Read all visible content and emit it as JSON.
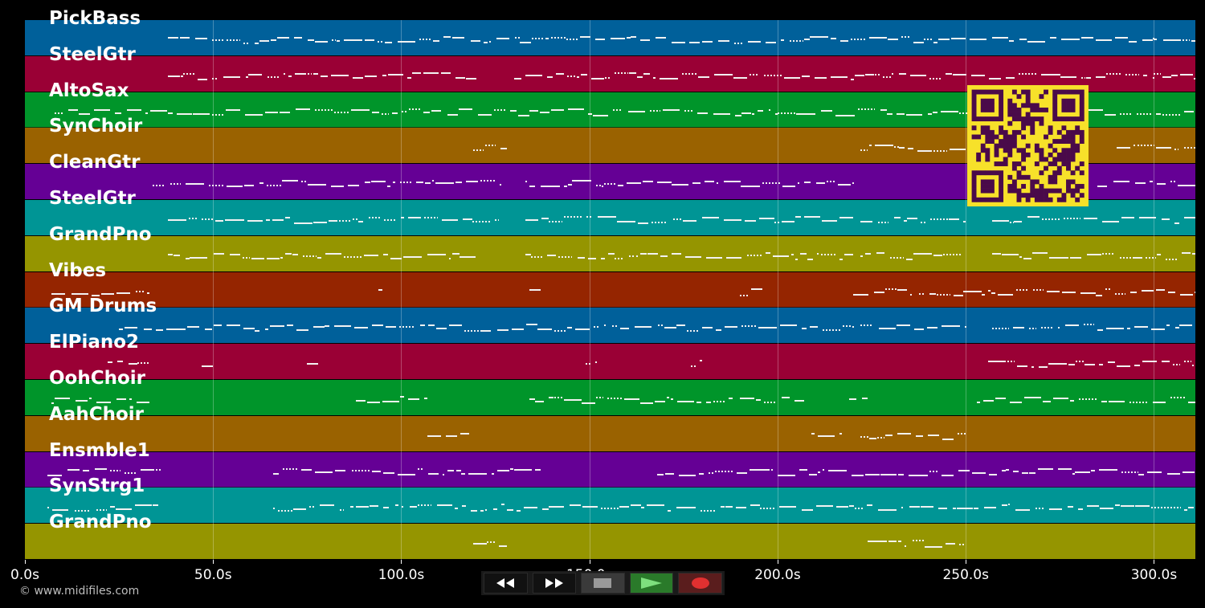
{
  "tracks": [
    {
      "name": "PickBass",
      "color": "#00609a"
    },
    {
      "name": "SteelGtr",
      "color": "#9a0035"
    },
    {
      "name": "AltoSax",
      "color": "#00952a"
    },
    {
      "name": "SynChoir",
      "color": "#9a6200"
    },
    {
      "name": "CleanGtr",
      "color": "#650095"
    },
    {
      "name": "SteelGtr",
      "color": "#009595"
    },
    {
      "name": "GrandPno",
      "color": "#959500"
    },
    {
      "name": "Vibes",
      "color": "#952500"
    },
    {
      "name": "GM Drums",
      "color": "#00609a"
    },
    {
      "name": "ElPiano2",
      "color": "#9a0035"
    },
    {
      "name": "OohChoir",
      "color": "#00952a"
    },
    {
      "name": "AahChoir",
      "color": "#9a6200"
    },
    {
      "name": "Ensmble1",
      "color": "#650095"
    },
    {
      "name": "SynStrg1",
      "color": "#009595"
    },
    {
      "name": "GrandPno",
      "color": "#959500"
    }
  ],
  "axis": {
    "ticks": [
      {
        "value": 0,
        "label": "0.0s"
      },
      {
        "value": 50,
        "label": "50.0s"
      },
      {
        "value": 100,
        "label": "100.0s"
      },
      {
        "value": 150,
        "label": "150.0s"
      },
      {
        "value": 200,
        "label": "200.0s"
      },
      {
        "value": 250,
        "label": "250.0s"
      },
      {
        "value": 300,
        "label": "300.0s"
      }
    ],
    "max_seconds": 311
  },
  "copyright": "© www.midifiles.com",
  "controls": [
    {
      "name": "rewind-button",
      "icon": "rewind-icon"
    },
    {
      "name": "fast-forward-button",
      "icon": "fast-forward-icon"
    },
    {
      "name": "stop-button",
      "icon": "stop-icon"
    },
    {
      "name": "play-button",
      "icon": "play-icon"
    },
    {
      "name": "record-button",
      "icon": "record-icon"
    }
  ],
  "colors": {
    "background": "#000000",
    "qr": "#f7e12a",
    "qr_dark": "#4a0a4a"
  }
}
